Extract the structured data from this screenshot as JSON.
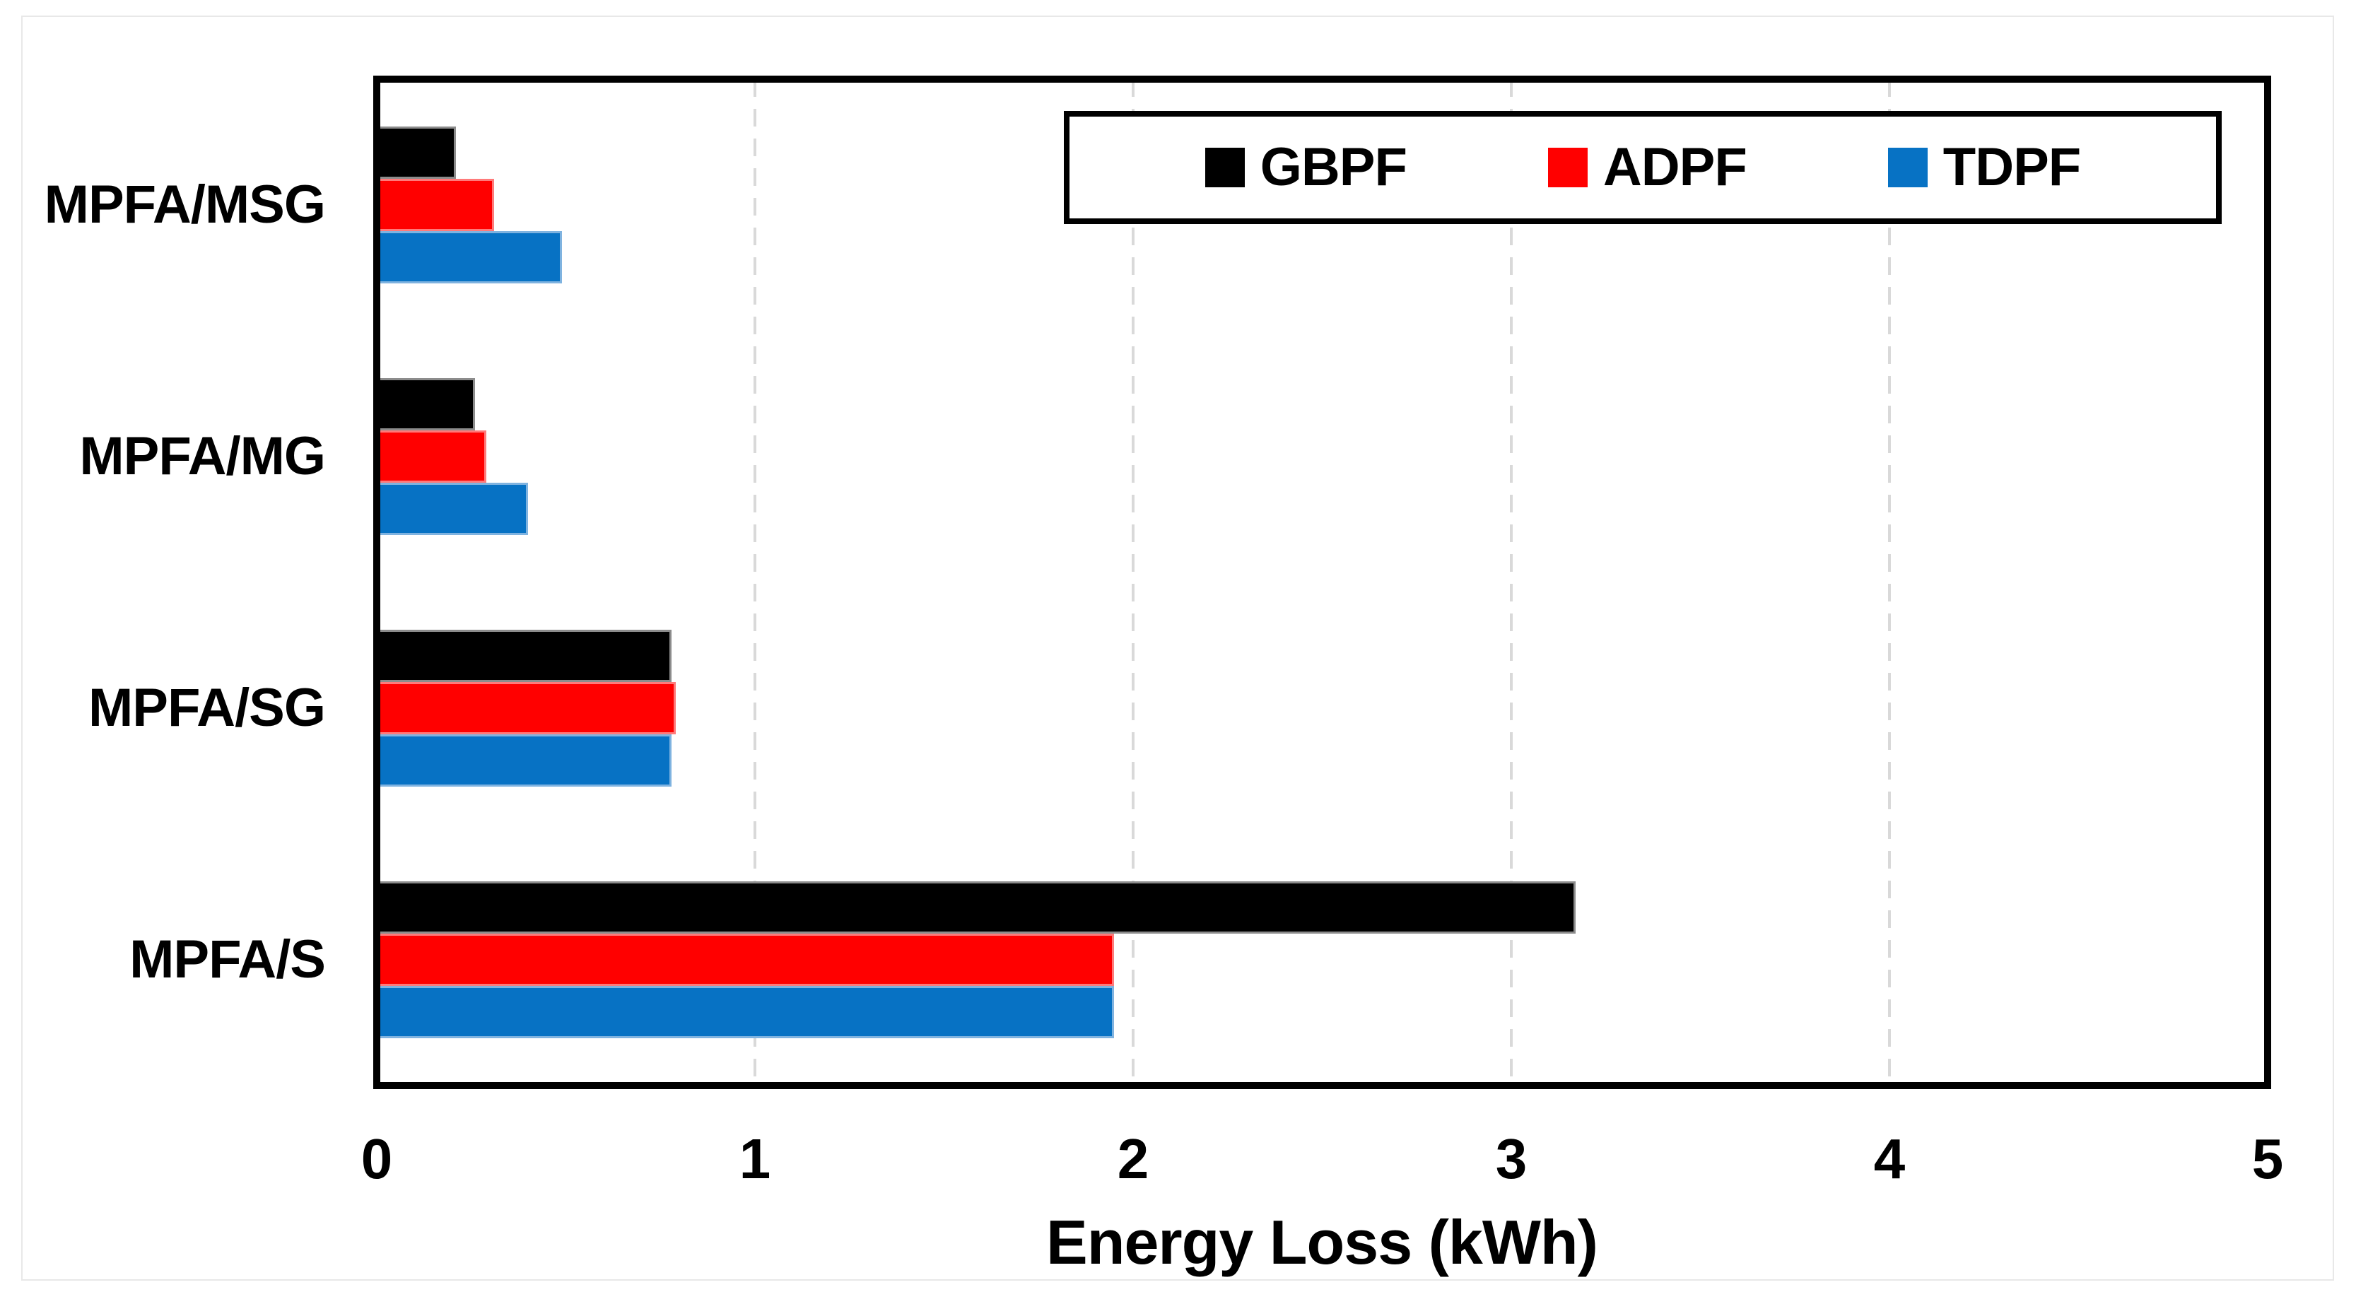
{
  "chart_data": {
    "type": "bar",
    "orientation": "horizontal",
    "title": "",
    "xlabel": "Energy Loss (kWh)",
    "ylabel": "",
    "xlim": [
      0,
      5
    ],
    "xticks": [
      0,
      1,
      2,
      3,
      4,
      5
    ],
    "grid": "vertical dashed gray gridlines at ticks 1-4",
    "legend_position": "top-right inside plot area, boxed",
    "categories": [
      "MPFA/MSG",
      "MPFA/MG",
      "MPFA/SG",
      "MPFA/S"
    ],
    "series": [
      {
        "name": "GBPF",
        "color": "#000000",
        "border": "#8c8c8c",
        "values": [
          0.21,
          0.26,
          0.78,
          3.17
        ]
      },
      {
        "name": "ADPF",
        "color": "#ff0000",
        "border": "#ff7a7a",
        "values": [
          0.31,
          0.29,
          0.79,
          1.95
        ]
      },
      {
        "name": "TDPF",
        "color": "#0772c4",
        "border": "#7fb3e0",
        "values": [
          0.49,
          0.4,
          0.78,
          1.95
        ]
      }
    ]
  },
  "colors": {
    "plot_border": "#000000",
    "gridline": "#d9d9d9",
    "background": "#ffffff",
    "chart_frame": "#e8e8e8"
  }
}
